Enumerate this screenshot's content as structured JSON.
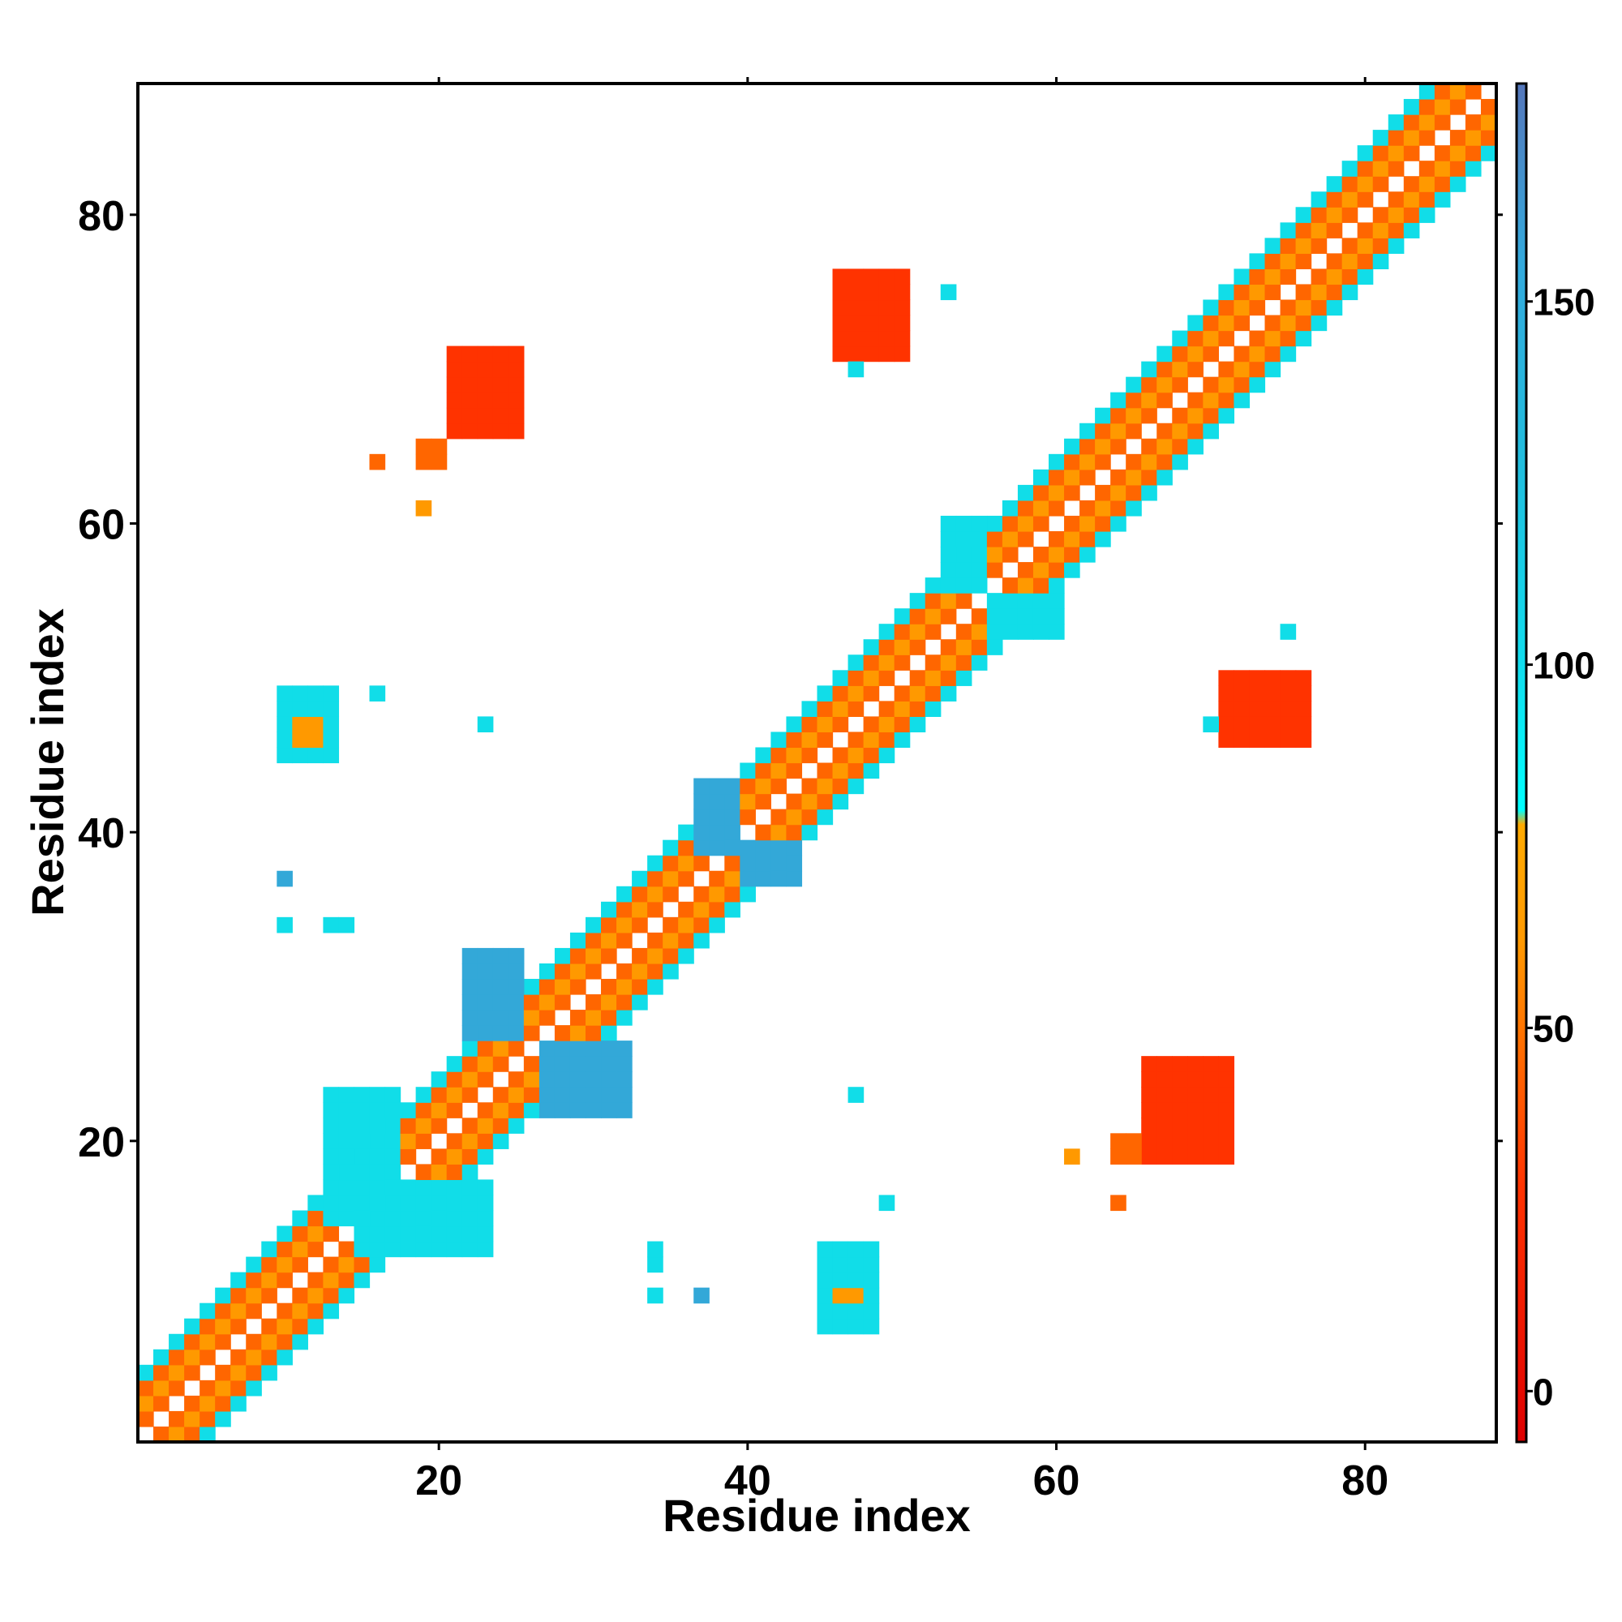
{
  "chart_data": {
    "type": "heatmap",
    "title": "",
    "xlabel": "Residue index",
    "ylabel": "Residue index",
    "xlim": [
      0.5,
      88.5
    ],
    "ylim": [
      0.5,
      88.5
    ],
    "x_ticks": [
      20,
      40,
      60,
      80
    ],
    "y_ticks": [
      20,
      40,
      60,
      80
    ],
    "colorbar": {
      "ticks": [
        0,
        50,
        100,
        150
      ],
      "range": [
        -7,
        180
      ],
      "stops": [
        {
          "value": -7,
          "color": "#dd0000"
        },
        {
          "value": 28,
          "color": "#ff3300"
        },
        {
          "value": 45,
          "color": "#ff6600"
        },
        {
          "value": 62,
          "color": "#ff9900"
        },
        {
          "value": 78,
          "color": "#ffaa00"
        },
        {
          "value": 80,
          "color": "#00ffff"
        },
        {
          "value": 100,
          "color": "#11ddee"
        },
        {
          "value": 130,
          "color": "#22bbdd"
        },
        {
          "value": 155,
          "color": "#33aadd"
        },
        {
          "value": 180,
          "color": "#5577bb"
        }
      ],
      "top_cap_color": "#ffffff"
    },
    "cell_value_colors": {
      "very_low": "#ee1100",
      "low": "#ff3300",
      "mid": "#ff6600",
      "high": "#ff9900",
      "cyan": "#11dde8",
      "deep": "#33a8d8"
    },
    "diagonal_band": {
      "from": 1,
      "to": 88,
      "pattern": [
        {
          "offset": 1,
          "value": "mid"
        },
        {
          "offset": 2,
          "value": "high"
        },
        {
          "offset": 3,
          "value": "mid"
        },
        {
          "offset": 4,
          "value": "cyan"
        }
      ]
    },
    "off_diagonal_contacts": [
      {
        "x": [
          21,
          25
        ],
        "y": [
          66,
          71
        ],
        "value": "low"
      },
      {
        "x": [
          19,
          20
        ],
        "y": [
          64,
          65
        ],
        "value": "mid"
      },
      {
        "x": [
          16,
          16
        ],
        "y": [
          64,
          64
        ],
        "value": "mid"
      },
      {
        "x": [
          19,
          19
        ],
        "y": [
          61,
          61
        ],
        "value": "high"
      },
      {
        "x": [
          46,
          50
        ],
        "y": [
          71,
          76
        ],
        "value": "low"
      },
      {
        "x": [
          53,
          53
        ],
        "y": [
          75,
          75
        ],
        "value": "cyan"
      },
      {
        "x": [
          47,
          47
        ],
        "y": [
          70,
          70
        ],
        "value": "cyan"
      },
      {
        "x": [
          66,
          71
        ],
        "y": [
          19,
          25
        ],
        "value": "low"
      },
      {
        "x": [
          64,
          65
        ],
        "y": [
          19,
          20
        ],
        "value": "mid"
      },
      {
        "x": [
          61,
          61
        ],
        "y": [
          19,
          19
        ],
        "value": "high"
      },
      {
        "x": [
          64,
          64
        ],
        "y": [
          16,
          16
        ],
        "value": "mid"
      },
      {
        "x": [
          71,
          76
        ],
        "y": [
          46,
          50
        ],
        "value": "low"
      },
      {
        "x": [
          75,
          75
        ],
        "y": [
          53,
          53
        ],
        "value": "cyan"
      },
      {
        "x": [
          70,
          70
        ],
        "y": [
          47,
          47
        ],
        "value": "cyan"
      },
      {
        "x": [
          10,
          13
        ],
        "y": [
          45,
          49
        ],
        "value": "cyan"
      },
      {
        "x": [
          11,
          12
        ],
        "y": [
          46,
          47
        ],
        "value": "high"
      },
      {
        "x": [
          16,
          16
        ],
        "y": [
          49,
          49
        ],
        "value": "cyan"
      },
      {
        "x": [
          23,
          23
        ],
        "y": [
          47,
          47
        ],
        "value": "cyan"
      },
      {
        "x": [
          10,
          10
        ],
        "y": [
          37,
          37
        ],
        "value": "deep"
      },
      {
        "x": [
          10,
          10
        ],
        "y": [
          34,
          34
        ],
        "value": "cyan"
      },
      {
        "x": [
          13,
          14
        ],
        "y": [
          34,
          34
        ],
        "value": "cyan"
      },
      {
        "x": [
          45,
          48
        ],
        "y": [
          8,
          13
        ],
        "value": "cyan"
      },
      {
        "x": [
          46,
          47
        ],
        "y": [
          10,
          10
        ],
        "value": "high"
      },
      {
        "x": [
          34,
          34
        ],
        "y": [
          12,
          13
        ],
        "value": "cyan"
      },
      {
        "x": [
          34,
          34
        ],
        "y": [
          10,
          10
        ],
        "value": "cyan"
      },
      {
        "x": [
          37,
          37
        ],
        "y": [
          10,
          10
        ],
        "value": "deep"
      },
      {
        "x": [
          49,
          49
        ],
        "y": [
          16,
          16
        ],
        "value": "cyan"
      },
      {
        "x": [
          47,
          47
        ],
        "y": [
          23,
          23
        ],
        "value": "cyan"
      },
      {
        "x": [
          22,
          25
        ],
        "y": [
          27,
          32
        ],
        "value": "deep"
      },
      {
        "x": [
          27,
          32
        ],
        "y": [
          22,
          26
        ],
        "value": "deep"
      },
      {
        "x": [
          37,
          39
        ],
        "y": [
          39,
          43
        ],
        "value": "deep"
      },
      {
        "x": [
          40,
          43
        ],
        "y": [
          37,
          39
        ],
        "value": "deep"
      },
      {
        "x": [
          53,
          55
        ],
        "y": [
          56,
          60
        ],
        "value": "cyan"
      },
      {
        "x": [
          56,
          60
        ],
        "y": [
          53,
          55
        ],
        "value": "cyan"
      },
      {
        "x": [
          13,
          17
        ],
        "y": [
          15,
          23
        ],
        "value": "cyan"
      },
      {
        "x": [
          15,
          23
        ],
        "y": [
          13,
          17
        ],
        "value": "cyan"
      }
    ]
  }
}
